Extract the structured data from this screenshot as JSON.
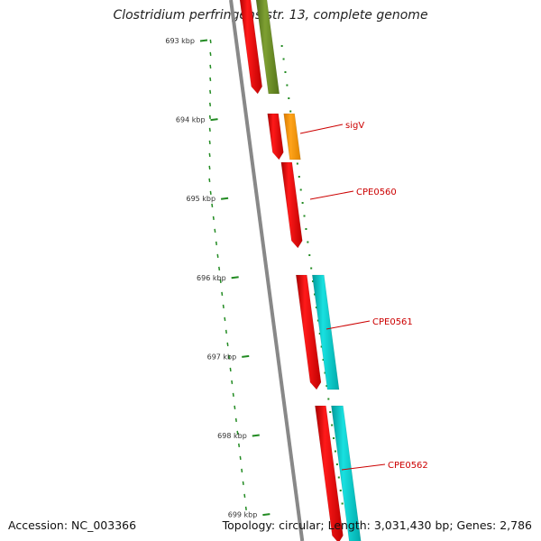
{
  "header": {
    "title": "Clostridium perfringens str. 13, complete genome"
  },
  "footer": {
    "accession": "Accession: NC_003366",
    "summary": "Topology: circular; Length: 3,031,430 bp; Genes: 2,786"
  },
  "ruler": {
    "ticks": [
      "693 kbp",
      "694 kbp",
      "695 kbp",
      "696 kbp",
      "697 kbp",
      "698 kbp",
      "699 kbp"
    ]
  },
  "genes": [
    {
      "label": "sigV"
    },
    {
      "label": "CPE0560"
    },
    {
      "label": "CPE0561"
    },
    {
      "label": "CPE0562"
    }
  ],
  "colors": {
    "cds": "#ff0000",
    "orange_feature": "#ff9900",
    "olive_feature": "#6b8e23",
    "cyan_feature": "#00cccc",
    "backbone": "#888888",
    "tick": "#228b22",
    "label": "#cc0000"
  }
}
